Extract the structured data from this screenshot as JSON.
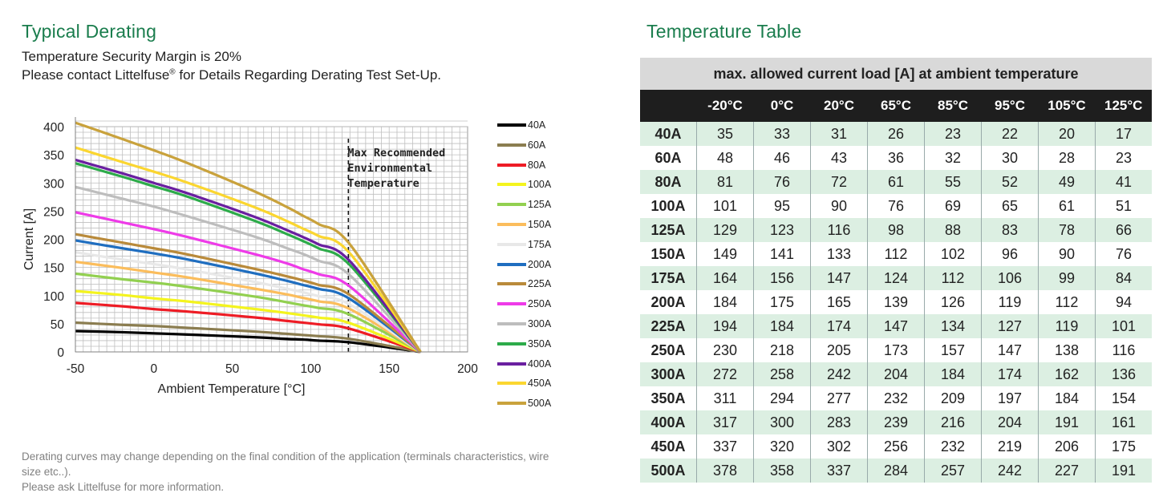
{
  "left": {
    "title": "Typical Derating",
    "line1": "Temperature Security Margin is 20%",
    "line2_pre": "Please contact Littelfuse",
    "line2_sup": "®",
    "line2_post": " for Details Regarding Derating Test Set-Up.",
    "footnote1": "Derating curves may change depending on the final condition of the application (terminals characteristics, wire",
    "footnote2": "size etc..).",
    "footnote3": "Please ask Littelfuse for more information."
  },
  "chart_data": {
    "type": "line",
    "title": "Typical Derating",
    "xlabel": "Ambient Temperature [°C]",
    "ylabel": "Current [A]",
    "xlim": [
      -50,
      200
    ],
    "ylim": [
      0,
      400
    ],
    "xticks": [
      -50,
      0,
      50,
      100,
      150,
      200
    ],
    "yticks": [
      0,
      50,
      100,
      150,
      200,
      250,
      300,
      350,
      400
    ],
    "grid": true,
    "annotation": {
      "x": 124,
      "lines": [
        "Max Recommended",
        "Environmental",
        "Temperature"
      ]
    },
    "x": [
      -50,
      -20,
      0,
      20,
      65,
      85,
      95,
      105,
      125,
      170
    ],
    "series": [
      {
        "name": "40A",
        "color": "#000000",
        "values": [
          37,
          35,
          33,
          31,
          26,
          23,
          22,
          20,
          17,
          0
        ]
      },
      {
        "name": "60A",
        "color": "#8b7d50",
        "values": [
          52,
          48,
          46,
          43,
          36,
          32,
          30,
          28,
          23,
          0
        ]
      },
      {
        "name": "80A",
        "color": "#ee1c25",
        "values": [
          87,
          81,
          76,
          72,
          61,
          55,
          52,
          49,
          41,
          0
        ]
      },
      {
        "name": "100A",
        "color": "#f4f41e",
        "values": [
          108,
          101,
          95,
          90,
          76,
          69,
          65,
          61,
          51,
          0
        ]
      },
      {
        "name": "125A",
        "color": "#92d050",
        "values": [
          139,
          129,
          123,
          116,
          98,
          88,
          83,
          78,
          66,
          0
        ]
      },
      {
        "name": "150A",
        "color": "#fbbd5c",
        "values": [
          160,
          149,
          141,
          133,
          112,
          102,
          96,
          90,
          76,
          0
        ]
      },
      {
        "name": "175A",
        "color": "#e8e8e8",
        "values": [
          177,
          164,
          156,
          147,
          124,
          112,
          106,
          99,
          84,
          0
        ]
      },
      {
        "name": "200A",
        "color": "#1f6ec0",
        "values": [
          198,
          184,
          175,
          165,
          139,
          126,
          119,
          112,
          94,
          0
        ]
      },
      {
        "name": "225A",
        "color": "#b98a3a",
        "values": [
          209,
          194,
          184,
          174,
          147,
          134,
          127,
          119,
          101,
          0
        ]
      },
      {
        "name": "250A",
        "color": "#ee3be8",
        "values": [
          248,
          230,
          218,
          205,
          173,
          157,
          147,
          138,
          116,
          0
        ]
      },
      {
        "name": "300A",
        "color": "#bdbdbd",
        "values": [
          293,
          272,
          258,
          242,
          204,
          184,
          174,
          162,
          136,
          0
        ]
      },
      {
        "name": "350A",
        "color": "#2dab4a",
        "values": [
          335,
          311,
          294,
          277,
          232,
          209,
          197,
          184,
          154,
          0
        ]
      },
      {
        "name": "400A",
        "color": "#6a1fa0",
        "values": [
          341,
          317,
          300,
          283,
          239,
          216,
          204,
          191,
          161,
          0
        ]
      },
      {
        "name": "450A",
        "color": "#fbd630",
        "values": [
          363,
          337,
          320,
          302,
          256,
          232,
          219,
          206,
          175,
          0
        ]
      },
      {
        "name": "500A",
        "color": "#c9a23c",
        "values": [
          407,
          378,
          358,
          337,
          284,
          257,
          242,
          227,
          191,
          0
        ]
      }
    ]
  },
  "table": {
    "title": "Temperature Table",
    "caption": "max. allowed current load [A] at ambient temperature",
    "columns": [
      "-20°C",
      "0°C",
      "20°C",
      "65°C",
      "85°C",
      "95°C",
      "105°C",
      "125°C"
    ],
    "rows": [
      {
        "label": "40A",
        "values": [
          "35",
          "33",
          "31",
          "26",
          "23",
          "22",
          "20",
          "17"
        ]
      },
      {
        "label": "60A",
        "values": [
          "48",
          "46",
          "43",
          "36",
          "32",
          "30",
          "28",
          "23"
        ]
      },
      {
        "label": "80A",
        "values": [
          "81",
          "76",
          "72",
          "61",
          "55",
          "52",
          "49",
          "41"
        ]
      },
      {
        "label": "100A",
        "values": [
          "101",
          "95",
          "90",
          "76",
          "69",
          "65",
          "61",
          "51"
        ]
      },
      {
        "label": "125A",
        "values": [
          "129",
          "123",
          "116",
          "98",
          "88",
          "83",
          "78",
          "66"
        ]
      },
      {
        "label": "150A",
        "values": [
          "149",
          "141",
          "133",
          "112",
          "102",
          "96",
          "90",
          "76"
        ]
      },
      {
        "label": "175A",
        "values": [
          "164",
          "156",
          "147",
          "124",
          "112",
          "106",
          "99",
          "84"
        ]
      },
      {
        "label": "200A",
        "values": [
          "184",
          "175",
          "165",
          "139",
          "126",
          "119",
          "112",
          "94"
        ]
      },
      {
        "label": "225A",
        "values": [
          "194",
          "184",
          "174",
          "147",
          "134",
          "127",
          "119",
          "101"
        ]
      },
      {
        "label": "250A",
        "values": [
          "230",
          "218",
          "205",
          "173",
          "157",
          "147",
          "138",
          "116"
        ]
      },
      {
        "label": "300A",
        "values": [
          "272",
          "258",
          "242",
          "204",
          "184",
          "174",
          "162",
          "136"
        ]
      },
      {
        "label": "350A",
        "values": [
          "311",
          "294",
          "277",
          "232",
          "209",
          "197",
          "184",
          "154"
        ]
      },
      {
        "label": "400A",
        "values": [
          "317",
          "300",
          "283",
          "239",
          "216",
          "204",
          "191",
          "161"
        ]
      },
      {
        "label": "450A",
        "values": [
          "337",
          "320",
          "302",
          "256",
          "232",
          "219",
          "206",
          "175"
        ]
      },
      {
        "label": "500A",
        "values": [
          "378",
          "358",
          "337",
          "284",
          "257",
          "242",
          "227",
          "191"
        ]
      }
    ]
  }
}
